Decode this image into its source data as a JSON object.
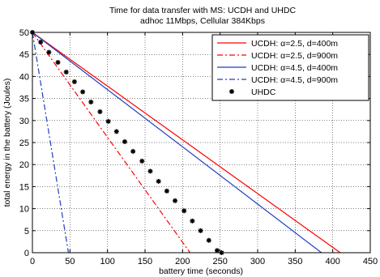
{
  "chart_data": {
    "type": "line",
    "title": "Time for data transfer with MS: UCDH and UHDC",
    "subtitle": "adhoc 11Mbps, Cellular 384Kbps",
    "xlabel": "battery time (seconds)",
    "ylabel": "total energy in the battery (Joules)",
    "xlim": [
      0,
      450
    ],
    "ylim": [
      0,
      50
    ],
    "xticks": [
      0,
      50,
      100,
      150,
      200,
      250,
      300,
      350,
      400,
      450
    ],
    "yticks": [
      0,
      5,
      10,
      15,
      20,
      25,
      30,
      35,
      40,
      45,
      50
    ],
    "grid": true,
    "legend_position": "top-right",
    "series": [
      {
        "name": "UCDH: α=2.5, d=400m",
        "color": "#ff0000",
        "style": "solid",
        "x": [
          0,
          410
        ],
        "y": [
          50,
          0
        ]
      },
      {
        "name": "UCDH: α=2.5, d=900m",
        "color": "#ff0000",
        "style": "dashdot",
        "x": [
          0,
          210
        ],
        "y": [
          50,
          0
        ]
      },
      {
        "name": "UCDH: α=4.5, d=400m",
        "color": "#1f3fbf",
        "style": "solid",
        "x": [
          0,
          385
        ],
        "y": [
          50,
          0
        ]
      },
      {
        "name": "UCDH: α=4.5, d=900m",
        "color": "#1f3fbf",
        "style": "dashdot",
        "x": [
          0,
          48
        ],
        "y": [
          50,
          0
        ]
      },
      {
        "name": "UHDC",
        "color": "#000000",
        "style": "marker",
        "x": [
          0,
          11,
          22,
          34,
          45,
          56,
          67,
          78,
          90,
          101,
          112,
          123,
          134,
          146,
          157,
          168,
          179,
          190,
          202,
          213,
          224,
          235,
          246,
          252
        ],
        "y": [
          50,
          47.8,
          45.5,
          43.2,
          41,
          38.8,
          36.5,
          34.2,
          32,
          29.8,
          27.5,
          25.2,
          23,
          20.8,
          18.5,
          16.2,
          14,
          11.8,
          9.5,
          7.2,
          5,
          2.8,
          0.5,
          0
        ]
      }
    ]
  }
}
